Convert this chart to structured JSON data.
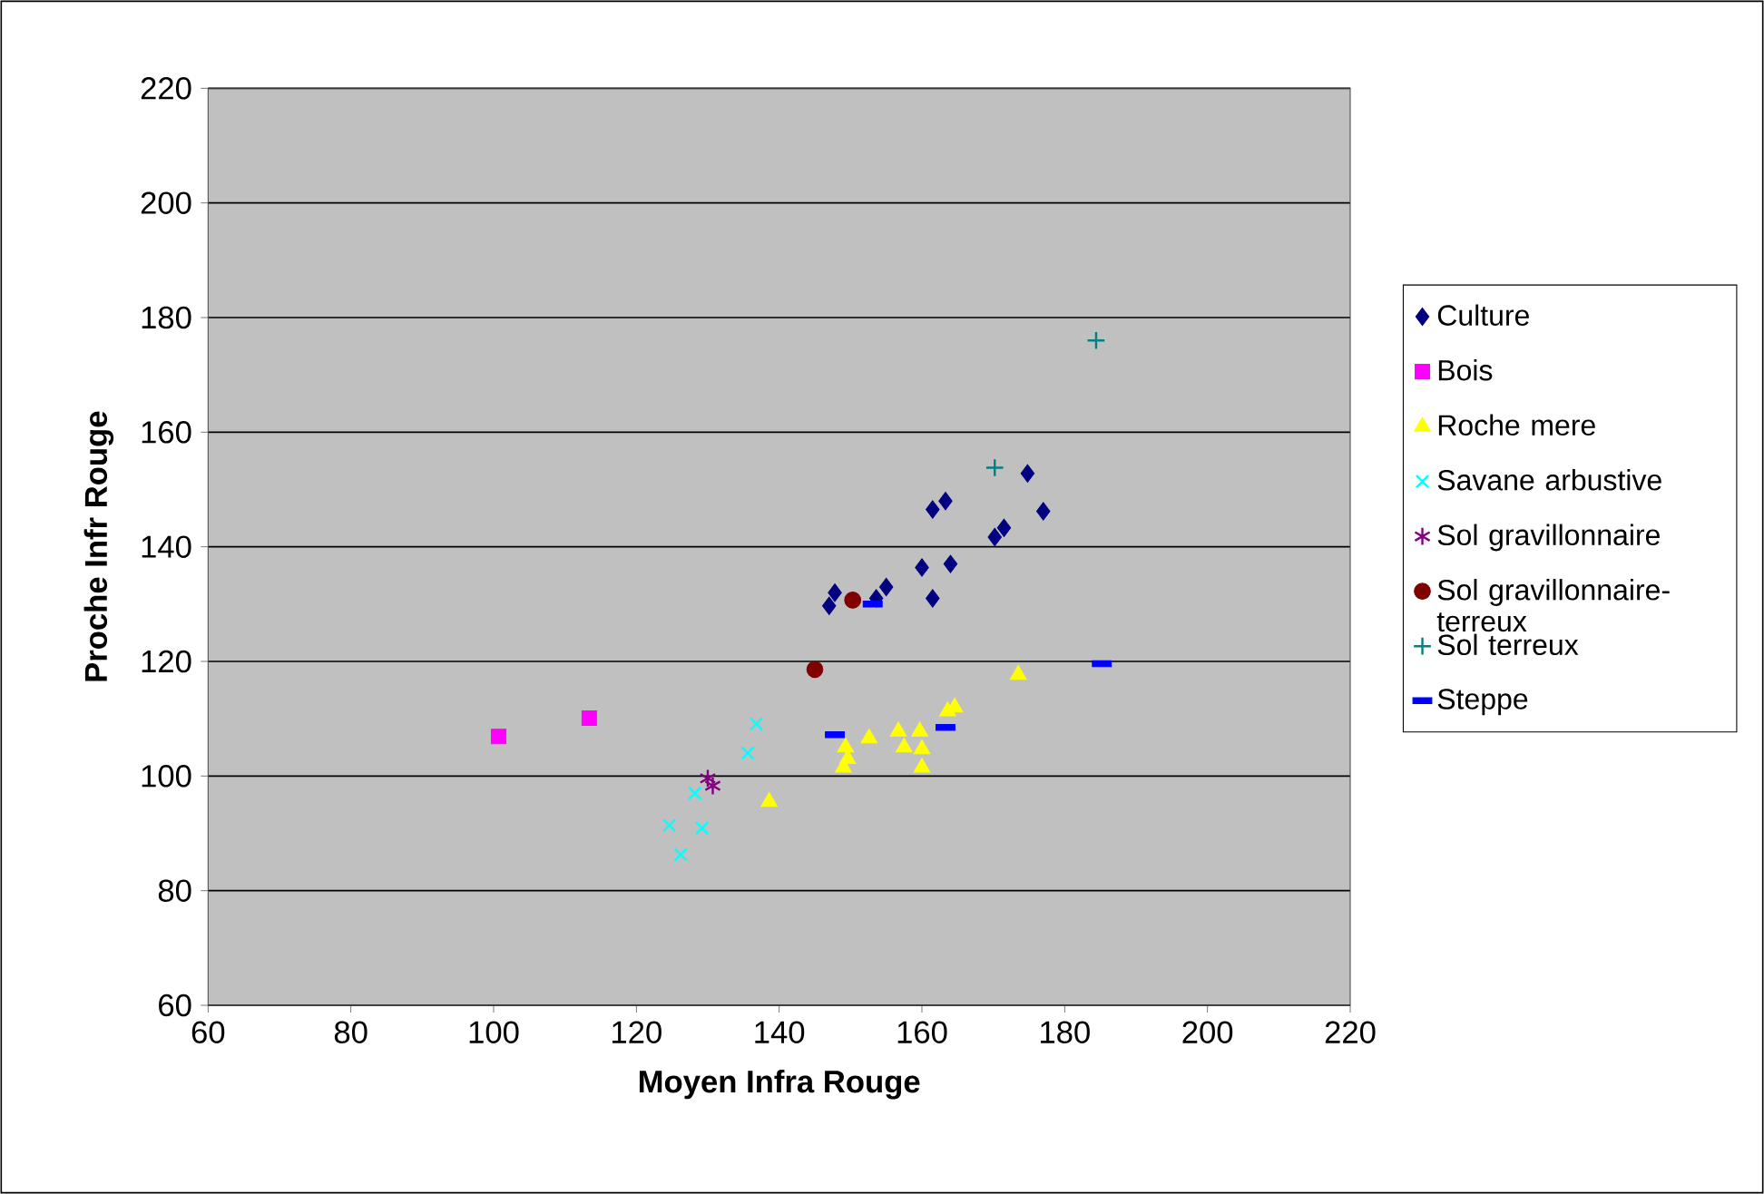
{
  "chart_data": {
    "type": "scatter",
    "xlabel": "Moyen Infra Rouge",
    "ylabel": "Proche Infr Rouge",
    "xlim": [
      60,
      220
    ],
    "ylim": [
      60,
      220
    ],
    "xticks": [
      60,
      80,
      100,
      120,
      140,
      160,
      180,
      200,
      220
    ],
    "yticks": [
      60,
      80,
      100,
      120,
      140,
      160,
      180,
      200,
      220
    ],
    "grid": "y",
    "legend": "right",
    "series": [
      {
        "name": "Culture",
        "color": "#000080",
        "marker": "diamond",
        "x": [
          147,
          147.8,
          153.6,
          155,
          160,
          161.5,
          161.5,
          163.3,
          164,
          170.2,
          171.5,
          174.8,
          177
        ],
        "values": [
          129.7,
          132,
          131,
          133,
          136.4,
          131,
          146.5,
          148,
          137,
          141.7,
          143.3,
          152.8,
          146.2
        ]
      },
      {
        "name": "Bois",
        "color": "#ff00ff",
        "marker": "square",
        "x": [
          100.7,
          113.4
        ],
        "values": [
          106.9,
          110.1
        ]
      },
      {
        "name": "Roche mere",
        "color": "#ffff00",
        "marker": "triangle",
        "x": [
          138.6,
          149.6,
          149,
          149.3,
          152.6,
          156.7,
          159.7,
          157.5,
          160,
          160,
          163.6,
          164.6,
          173.5
        ],
        "values": [
          95.5,
          103,
          101.5,
          105,
          106.6,
          107.8,
          107.8,
          105,
          104.7,
          101.5,
          111.3,
          112,
          117.7
        ]
      },
      {
        "name": "Savane arbustive",
        "color": "#00ffff",
        "marker": "cross",
        "x": [
          136.8,
          135.6,
          128.2,
          124.6,
          129.2,
          126.2
        ],
        "values": [
          109.1,
          104,
          97,
          91.4,
          90.9,
          86.3
        ]
      },
      {
        "name": "Sol gravillonnaire",
        "color": "#800080",
        "x": [
          130,
          130.7
        ],
        "values": [
          99.6,
          98.3
        ]
      },
      {
        "name": "Sol gravillonnaire-terreux",
        "color": "#800000",
        "marker": "circle",
        "x": [
          145,
          150.3
        ],
        "values": [
          118.6,
          130.7
        ]
      },
      {
        "name": "Sol terreux",
        "color": "#008080",
        "marker": "plus",
        "x": [
          170.2,
          184.4
        ],
        "values": [
          153.8,
          176
        ]
      },
      {
        "name": "Steppe",
        "color": "#0000ff",
        "x": [
          147.8,
          153.1,
          163.3,
          185.2
        ],
        "values": [
          107.2,
          130,
          108.5,
          119.6
        ]
      }
    ]
  }
}
